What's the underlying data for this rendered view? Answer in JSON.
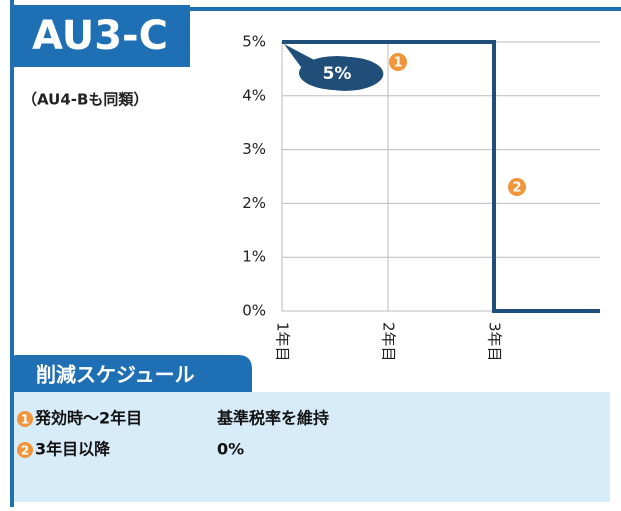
{
  "title": "AU3-C",
  "subtitle": "（AU4-Bも同類）",
  "chart_data": {
    "type": "line",
    "x": [
      1,
      3,
      3,
      4
    ],
    "values": [
      5,
      5,
      0,
      0
    ],
    "color": "#1f4e79",
    "xlim": [
      1,
      4
    ],
    "xticks": [
      {
        "value": 1,
        "label": "1年目"
      },
      {
        "value": 2,
        "label": "2年目"
      },
      {
        "value": 3,
        "label": "3年目"
      }
    ],
    "ylim": [
      0,
      5
    ],
    "yticks": [
      {
        "value": 0,
        "label": "0%"
      },
      {
        "value": 1,
        "label": "1%"
      },
      {
        "value": 2,
        "label": "2%"
      },
      {
        "value": 3,
        "label": "3%"
      },
      {
        "value": 4,
        "label": "4%"
      },
      {
        "value": 5,
        "label": "5%"
      }
    ],
    "grid": true,
    "annotations": [
      {
        "text": "5%"
      },
      {
        "text": "1"
      },
      {
        "text": "2"
      }
    ]
  },
  "schedule": {
    "title": "削減スケジュール",
    "rows": [
      {
        "marker": "1",
        "period": "発効時〜2年目",
        "rate": "基準税率を維持"
      },
      {
        "marker": "2",
        "period": "3年目以降",
        "rate": "0%"
      }
    ]
  }
}
